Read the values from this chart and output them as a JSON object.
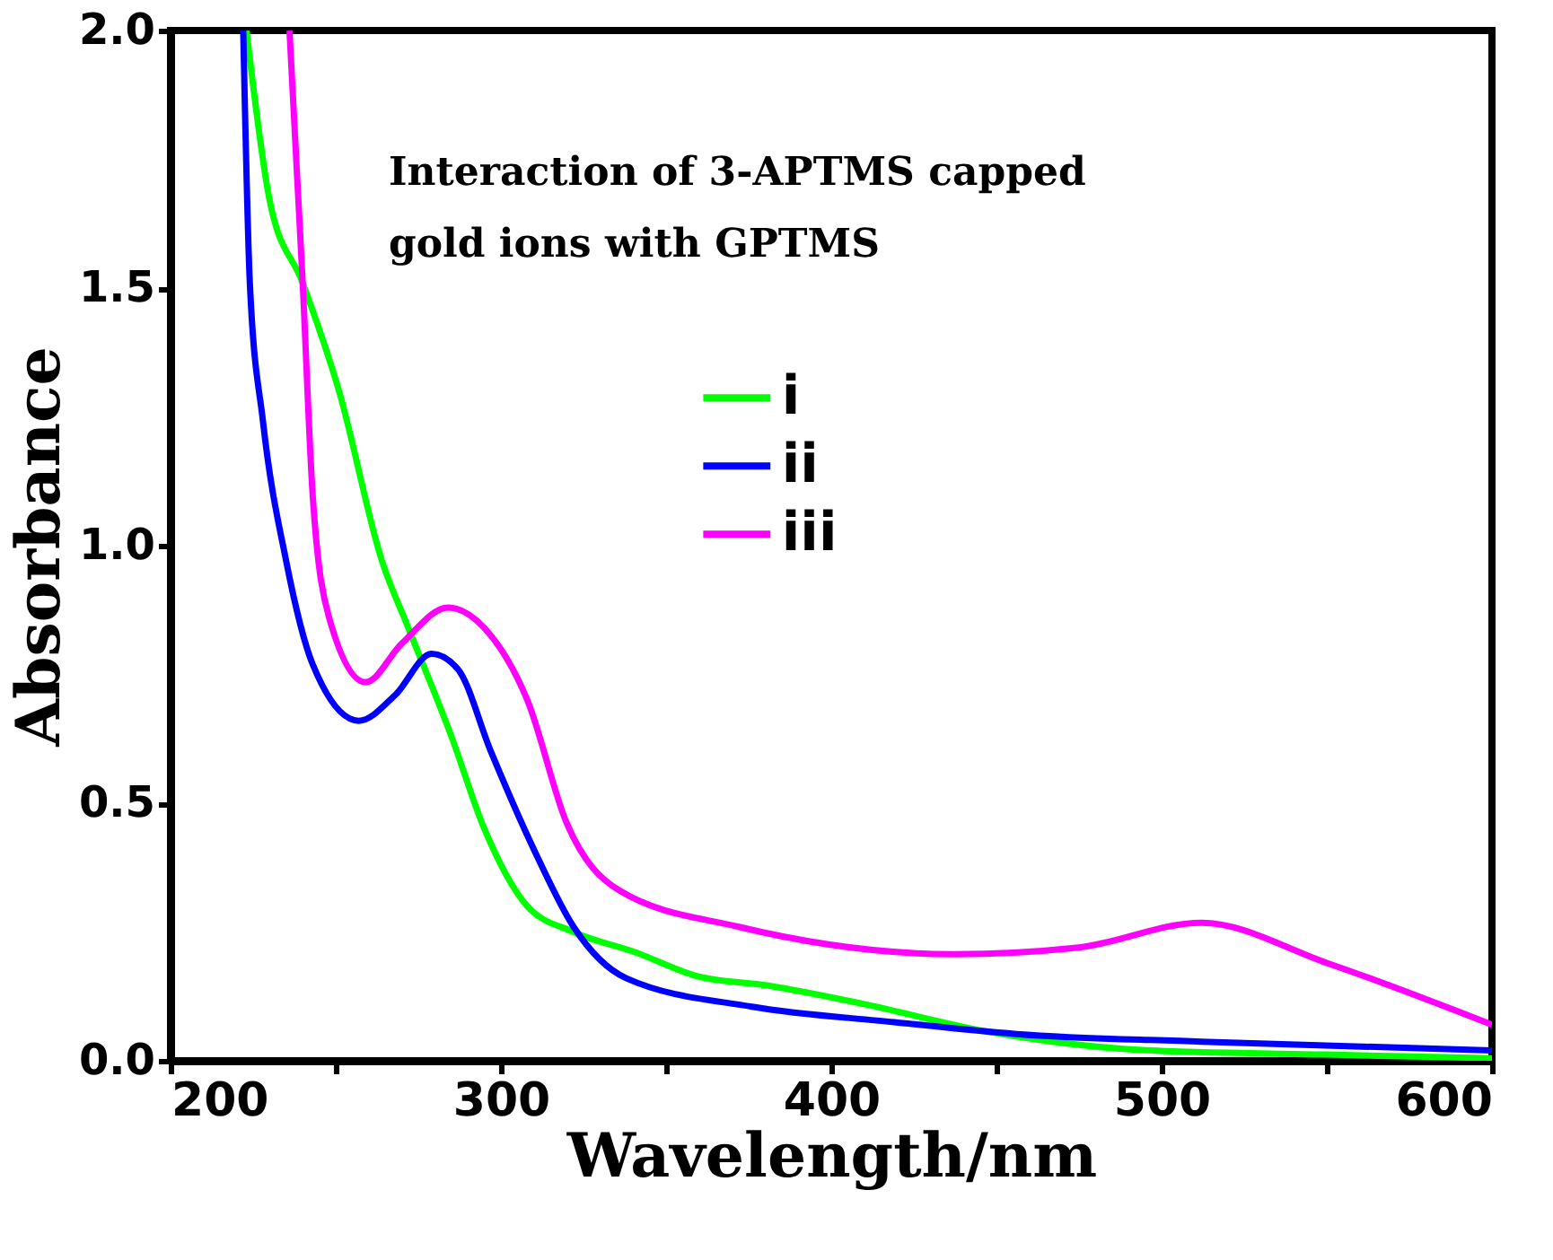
{
  "chart_data": {
    "type": "line",
    "xlabel": "Wavelength/nm",
    "ylabel": "Absorbance",
    "annotations": [
      "Interaction of 3-APTMS capped\ngold ions with GPTMS"
    ],
    "xlim": [
      200,
      600
    ],
    "ylim": [
      0,
      2.0
    ],
    "xticks": [
      200,
      {
        "value": 250,
        "label": null
      },
      300,
      {
        "value": 350,
        "label": null
      },
      400,
      {
        "value": 450,
        "label": null
      },
      500,
      {
        "value": 550,
        "label": null
      },
      600
    ],
    "yticks": [
      {
        "value": 0,
        "label": "0.0"
      },
      0.5,
      {
        "value": 1,
        "label": "1.0"
      },
      1.5,
      {
        "value": 2,
        "label": "2.0"
      }
    ],
    "grid": false,
    "legend": "top",
    "marker": "none",
    "line_style": "solid",
    "series": [
      {
        "name": "i",
        "color": "#00ff00",
        "x": [
          223,
          230,
          240,
          251,
          264,
          272,
          285,
          295,
          308,
          322,
          341,
          359,
          381,
          410,
          447,
          494,
          550,
          600
        ],
        "values": [
          2.0,
          1.67,
          1.51,
          1.3,
          0.97,
          0.84,
          0.63,
          0.45,
          0.3,
          0.25,
          0.21,
          0.165,
          0.146,
          0.11,
          0.057,
          0.021,
          0.012,
          0.005
        ]
      },
      {
        "name": "ii",
        "color": "#0000ff",
        "x": [
          222,
          224,
          228,
          235,
          243,
          257,
          268,
          279,
          287,
          297,
          310,
          322,
          338,
          376,
          419,
          456,
          512,
          600
        ],
        "values": [
          2.0,
          1.51,
          1.24,
          0.97,
          0.77,
          0.66,
          0.71,
          0.79,
          0.76,
          0.6,
          0.41,
          0.26,
          0.16,
          0.105,
          0.075,
          0.052,
          0.037,
          0.02
        ]
      },
      {
        "name": "iii",
        "color": "#ff00ff",
        "x": [
          236,
          240,
          243,
          248,
          259,
          270,
          284,
          295,
          308,
          320,
          336,
          372,
          437,
          475,
          512,
          550,
          600
        ],
        "values": [
          2.0,
          1.51,
          1.1,
          0.86,
          0.735,
          0.81,
          0.88,
          0.84,
          0.7,
          0.46,
          0.33,
          0.26,
          0.207,
          0.22,
          0.268,
          0.19,
          0.07
        ]
      }
    ]
  }
}
